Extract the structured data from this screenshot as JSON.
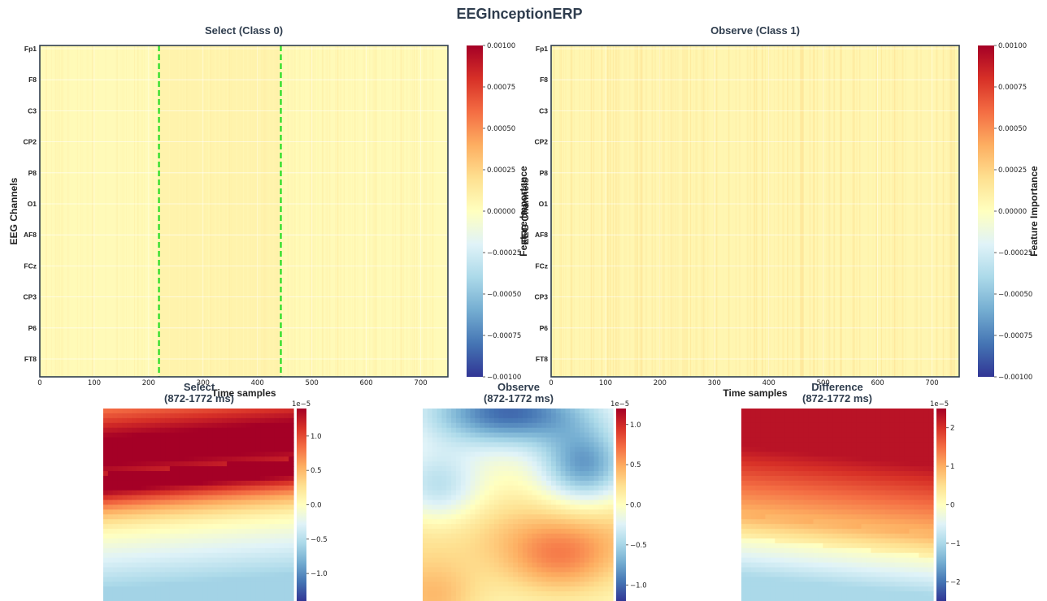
{
  "figure": {
    "title": "EEGInceptionERP"
  },
  "colormap": [
    "#313695",
    "#4575b4",
    "#74add1",
    "#abd9e9",
    "#e0f3f8",
    "#ffffbf",
    "#fee090",
    "#fdae61",
    "#f46d43",
    "#d73027",
    "#a50026"
  ],
  "chart_data": [
    {
      "id": "select_heatmap",
      "type": "heatmap",
      "title": "Select (Class 0)",
      "xlabel": "Time samples",
      "ylabel": "EEG Channels",
      "xlim": [
        0,
        750
      ],
      "xticks": [
        "0",
        "100",
        "200",
        "300",
        "400",
        "500",
        "600",
        "700"
      ],
      "channels": [
        "Fp1",
        "F8",
        "C3",
        "CP2",
        "P8",
        "O1",
        "AF8",
        "FCz",
        "CP3",
        "P6",
        "FT8"
      ],
      "window": {
        "start": 219,
        "end": 443,
        "color": "#22dd22",
        "style": "dashed"
      },
      "clim": [
        -0.001,
        0.001
      ],
      "approx_values": {
        "background": 3e-05,
        "window": 8e-05
      },
      "colorbar": {
        "label": "Feature Importance",
        "ticks": [
          "0.00100",
          "0.00075",
          "0.00050",
          "0.00025",
          "0.00000",
          "−0.00025",
          "−0.00050",
          "−0.00075",
          "−0.00100"
        ]
      }
    },
    {
      "id": "observe_heatmap",
      "type": "heatmap",
      "title": "Observe (Class 1)",
      "xlabel": "Time samples",
      "ylabel": "EEG Channels",
      "xlim": [
        0,
        750
      ],
      "xticks": [
        "0",
        "100",
        "200",
        "300",
        "400",
        "500",
        "600",
        "700"
      ],
      "channels": [
        "Fp1",
        "F8",
        "C3",
        "CP2",
        "P8",
        "O1",
        "AF8",
        "FCz",
        "CP3",
        "P6",
        "FT8"
      ],
      "clim": [
        -0.001,
        0.001
      ],
      "approx_values": {
        "background": 6e-05
      },
      "colorbar": {
        "label": "Feature Importance",
        "ticks": [
          "0.00100",
          "0.00075",
          "0.00050",
          "0.00025",
          "0.00000",
          "−0.00025",
          "−0.00050",
          "−0.00075",
          "−0.00100"
        ]
      }
    },
    {
      "id": "select_topomap",
      "type": "heatmap",
      "title_line1": "Select",
      "title_line2": "(872-1772 ms)",
      "clim": [
        -1.4,
        1.4
      ],
      "scale_label": "1e−5",
      "colorbar": {
        "ticks": [
          "1.0",
          "0.5",
          "0.0",
          "−0.5",
          "−1.0"
        ],
        "tick_values": [
          1.0,
          0.5,
          0.0,
          -0.5,
          -1.0
        ]
      },
      "field": {
        "top": 0.9,
        "peak": 1.3,
        "peak_pos": 0.2,
        "zero_pos": 0.65,
        "bottom": -0.6
      }
    },
    {
      "id": "observe_topomap",
      "type": "heatmap",
      "title_line1": "Observe",
      "title_line2": "(872-1772 ms)",
      "clim": [
        -1.2,
        1.2
      ],
      "scale_label": "1e−5",
      "colorbar": {
        "ticks": [
          "1.0",
          "0.5",
          "0.0",
          "−0.5",
          "−1.0"
        ],
        "tick_values": [
          1.0,
          0.5,
          0.0,
          -0.5,
          -1.0
        ]
      },
      "field": {
        "top_center": -1.0,
        "top_right": -0.8,
        "mid_left": -0.5,
        "lower_right": 0.5,
        "bottom_left": 0.4
      }
    },
    {
      "id": "difference_topomap",
      "type": "heatmap",
      "title_line1": "Difference",
      "title_line2": "(872-1772 ms)",
      "clim": [
        -2.5,
        2.5
      ],
      "scale_label": "1e−5",
      "colorbar": {
        "ticks": [
          "2",
          "1",
          "0",
          "−1",
          "−2"
        ],
        "tick_values": [
          2,
          1,
          0,
          -1,
          -2
        ]
      },
      "field": {
        "top": 2.3,
        "mid": 1.0,
        "zero_pos": 0.65,
        "bottom": -1.0
      }
    }
  ]
}
